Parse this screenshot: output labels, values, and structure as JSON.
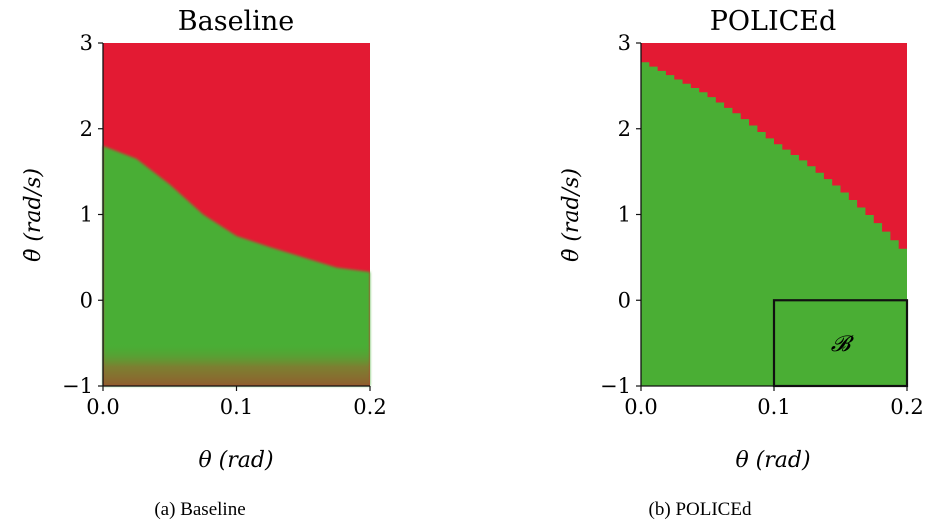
{
  "chart_data": [
    {
      "type": "heatmap",
      "title": "Baseline",
      "caption": "(a) Baseline",
      "xlabel": "θ (rad)",
      "ylabel": "θ̇ (rad/s)",
      "xlim": [
        0.0,
        0.2
      ],
      "ylim": [
        -1,
        3
      ],
      "xticks": [
        "0.0",
        "0.1",
        "0.2"
      ],
      "yticks": [
        "−1",
        "0",
        "1",
        "2",
        "3"
      ],
      "colors": {
        "safe": "#4aae34",
        "unsafe": "#e31a33"
      },
      "grid": false,
      "boundary": {
        "description": "upper edge of green (safe) region, theta_dot value at each theta",
        "theta": [
          0.0,
          0.025,
          0.05,
          0.075,
          0.1,
          0.125,
          0.15,
          0.175,
          0.2
        ],
        "theta_dot": [
          1.8,
          1.65,
          1.35,
          1.0,
          0.75,
          0.62,
          0.5,
          0.38,
          0.33
        ]
      },
      "bottom_band": {
        "theta_dot_range": [
          -1,
          -0.5
        ],
        "color": "#8a5a2e"
      }
    },
    {
      "type": "heatmap",
      "title": "POLICEd",
      "caption": "(b) POLICEd",
      "xlabel": "θ (rad)",
      "ylabel": "θ̇ (rad/s)",
      "xlim": [
        0.0,
        0.2
      ],
      "ylim": [
        -1,
        3
      ],
      "xticks": [
        "0.0",
        "0.1",
        "0.2"
      ],
      "yticks": [
        "−1",
        "0",
        "1",
        "2",
        "3"
      ],
      "colors": {
        "safe": "#4aae34",
        "unsafe": "#e31a33"
      },
      "grid": false,
      "boundary": {
        "description": "upper edge of green (safe) region, theta_dot value at each theta",
        "theta": [
          0.0,
          0.025,
          0.05,
          0.075,
          0.1,
          0.125,
          0.15,
          0.175,
          0.2
        ],
        "theta_dot": [
          2.8,
          2.6,
          2.4,
          2.15,
          1.85,
          1.6,
          1.3,
          0.95,
          0.55
        ]
      },
      "region_box": {
        "label": "𝓑",
        "theta": [
          0.1,
          0.2
        ],
        "theta_dot": [
          -1,
          0
        ]
      }
    }
  ]
}
